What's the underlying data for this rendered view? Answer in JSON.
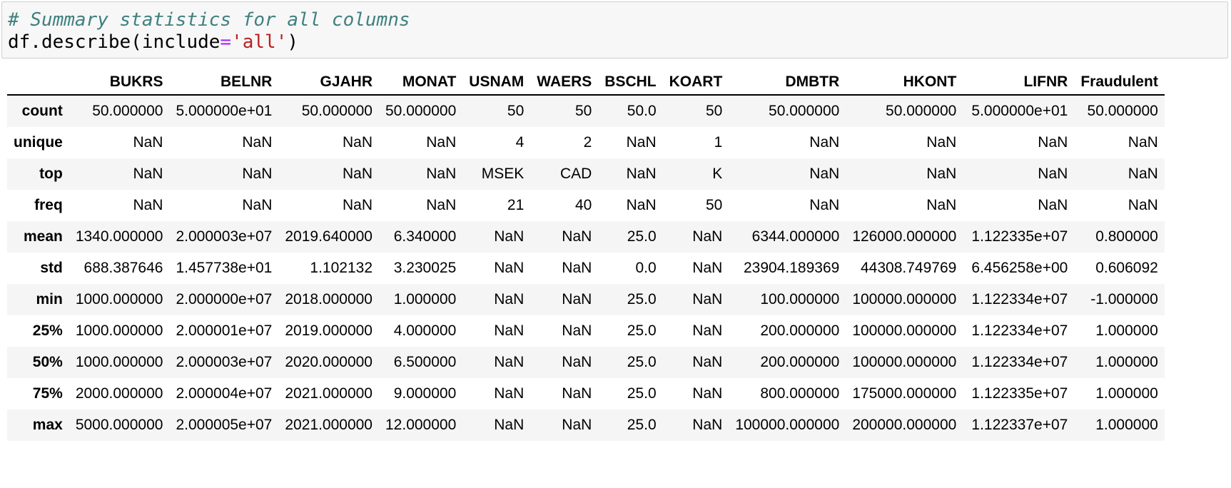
{
  "code_cell": {
    "comment": "# Summary statistics for all columns",
    "code_prefix": "df.describe(include",
    "code_op": "=",
    "code_string": "'all'",
    "code_suffix": ")"
  },
  "table": {
    "corner": "",
    "columns": [
      "BUKRS",
      "BELNR",
      "GJAHR",
      "MONAT",
      "USNAM",
      "WAERS",
      "BSCHL",
      "KOART",
      "DMBTR",
      "HKONT",
      "LIFNR",
      "Fraudulent"
    ],
    "rows": [
      {
        "label": "count",
        "cells": [
          "50.000000",
          "5.000000e+01",
          "50.000000",
          "50.000000",
          "50",
          "50",
          "50.0",
          "50",
          "50.000000",
          "50.000000",
          "5.000000e+01",
          "50.000000"
        ]
      },
      {
        "label": "unique",
        "cells": [
          "NaN",
          "NaN",
          "NaN",
          "NaN",
          "4",
          "2",
          "NaN",
          "1",
          "NaN",
          "NaN",
          "NaN",
          "NaN"
        ]
      },
      {
        "label": "top",
        "cells": [
          "NaN",
          "NaN",
          "NaN",
          "NaN",
          "MSEK",
          "CAD",
          "NaN",
          "K",
          "NaN",
          "NaN",
          "NaN",
          "NaN"
        ]
      },
      {
        "label": "freq",
        "cells": [
          "NaN",
          "NaN",
          "NaN",
          "NaN",
          "21",
          "40",
          "NaN",
          "50",
          "NaN",
          "NaN",
          "NaN",
          "NaN"
        ]
      },
      {
        "label": "mean",
        "cells": [
          "1340.000000",
          "2.000003e+07",
          "2019.640000",
          "6.340000",
          "NaN",
          "NaN",
          "25.0",
          "NaN",
          "6344.000000",
          "126000.000000",
          "1.122335e+07",
          "0.800000"
        ]
      },
      {
        "label": "std",
        "cells": [
          "688.387646",
          "1.457738e+01",
          "1.102132",
          "3.230025",
          "NaN",
          "NaN",
          "0.0",
          "NaN",
          "23904.189369",
          "44308.749769",
          "6.456258e+00",
          "0.606092"
        ]
      },
      {
        "label": "min",
        "cells": [
          "1000.000000",
          "2.000000e+07",
          "2018.000000",
          "1.000000",
          "NaN",
          "NaN",
          "25.0",
          "NaN",
          "100.000000",
          "100000.000000",
          "1.122334e+07",
          "-1.000000"
        ]
      },
      {
        "label": "25%",
        "cells": [
          "1000.000000",
          "2.000001e+07",
          "2019.000000",
          "4.000000",
          "NaN",
          "NaN",
          "25.0",
          "NaN",
          "200.000000",
          "100000.000000",
          "1.122334e+07",
          "1.000000"
        ]
      },
      {
        "label": "50%",
        "cells": [
          "1000.000000",
          "2.000003e+07",
          "2020.000000",
          "6.500000",
          "NaN",
          "NaN",
          "25.0",
          "NaN",
          "200.000000",
          "100000.000000",
          "1.122334e+07",
          "1.000000"
        ]
      },
      {
        "label": "75%",
        "cells": [
          "2000.000000",
          "2.000004e+07",
          "2021.000000",
          "9.000000",
          "NaN",
          "NaN",
          "25.0",
          "NaN",
          "800.000000",
          "175000.000000",
          "1.122335e+07",
          "1.000000"
        ]
      },
      {
        "label": "max",
        "cells": [
          "5000.000000",
          "2.000005e+07",
          "2021.000000",
          "12.000000",
          "NaN",
          "NaN",
          "25.0",
          "NaN",
          "100000.000000",
          "200000.000000",
          "1.122337e+07",
          "1.000000"
        ]
      }
    ]
  }
}
